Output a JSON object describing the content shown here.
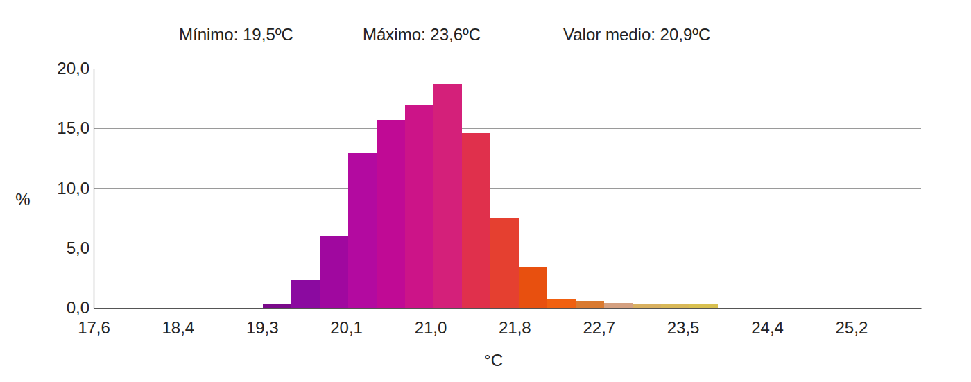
{
  "chart_data": {
    "type": "histogram",
    "annotations": [
      "Mínimo: 19,5ºC",
      "Máximo: 23,6ºC",
      "Valor medio: 20,9ºC"
    ],
    "xlabel": "°C",
    "ylabel": "%",
    "bins": [
      19.3,
      19.585,
      19.87,
      20.155,
      20.44,
      20.725,
      21.01,
      21.295,
      21.58,
      21.865,
      22.15,
      22.435,
      22.72,
      23.005,
      23.29,
      23.575,
      23.86
    ],
    "values": [
      0.3,
      2.3,
      6.0,
      13.0,
      15.7,
      17.0,
      18.7,
      14.6,
      7.5,
      3.4,
      0.7,
      0.6,
      0.4,
      0.3,
      0.3,
      0.3
    ],
    "colors": [
      "#7a0a8a",
      "#8b0aa0",
      "#a0089f",
      "#b30aa0",
      "#c00a95",
      "#cc1488",
      "#d4207a",
      "#e0304c",
      "#e54030",
      "#e8500f",
      "#f06010",
      "#d97a30",
      "#d4a080",
      "#d8b060",
      "#d8b858",
      "#d8c050"
    ],
    "xlim": [
      17.6,
      25.9
    ],
    "xticks": [
      {
        "value": 17.6,
        "label": "17,6"
      },
      {
        "value": 18.444,
        "label": "18,4"
      },
      {
        "value": 19.289,
        "label": "19,3"
      },
      {
        "value": 20.133,
        "label": "20,1"
      },
      {
        "value": 20.978,
        "label": "21,0"
      },
      {
        "value": 21.822,
        "label": "21,8"
      },
      {
        "value": 22.667,
        "label": "22,7"
      },
      {
        "value": 23.511,
        "label": "23,5"
      },
      {
        "value": 24.356,
        "label": "24,4"
      },
      {
        "value": 25.2,
        "label": "25,2"
      }
    ],
    "ylim": [
      0,
      20
    ],
    "yticks": [
      {
        "value": 0,
        "label": "0,0"
      },
      {
        "value": 5,
        "label": "5,0"
      },
      {
        "value": 10,
        "label": "10,0"
      },
      {
        "value": 15,
        "label": "15,0"
      },
      {
        "value": 20,
        "label": "20,0"
      }
    ],
    "grid": true
  }
}
